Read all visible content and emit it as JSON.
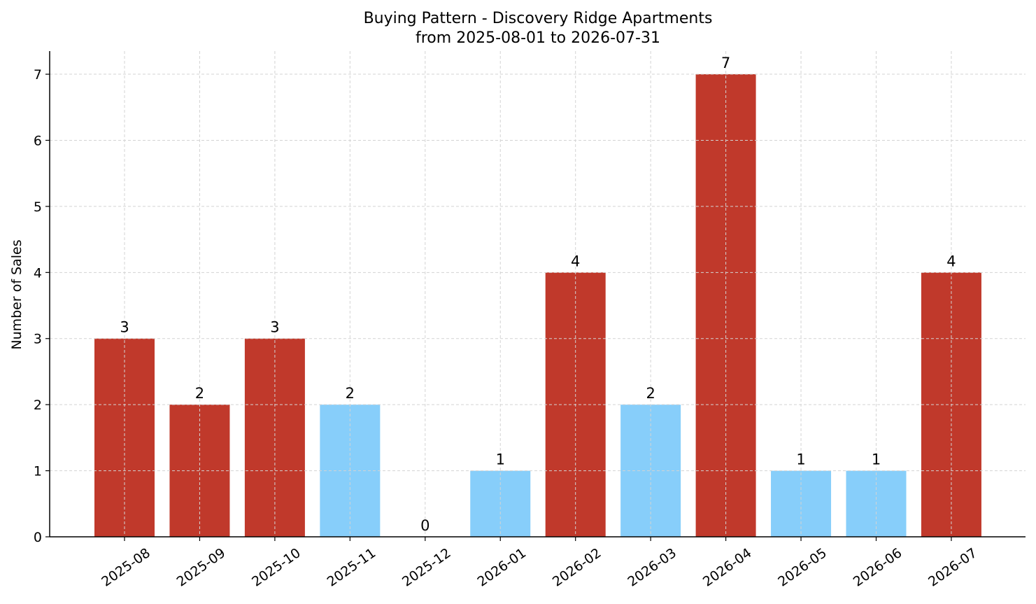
{
  "chart_data": {
    "type": "bar",
    "title_line1": "Buying Pattern - Discovery Ridge Apartments",
    "title_line2": "from 2025-08-01 to 2026-07-31",
    "xlabel": "",
    "ylabel": "Number of Sales",
    "categories": [
      "2025-08",
      "2025-09",
      "2025-10",
      "2025-11",
      "2025-12",
      "2026-01",
      "2026-02",
      "2026-03",
      "2026-04",
      "2026-05",
      "2026-06",
      "2026-07"
    ],
    "values": [
      3,
      2,
      3,
      2,
      0,
      1,
      4,
      2,
      7,
      1,
      1,
      4
    ],
    "bar_colors": [
      "#c0392b",
      "#c0392b",
      "#c0392b",
      "#87cefa",
      "#87cefa",
      "#87cefa",
      "#c0392b",
      "#87cefa",
      "#c0392b",
      "#87cefa",
      "#87cefa",
      "#c0392b"
    ],
    "data_labels": [
      "3",
      "2",
      "3",
      "2",
      "0",
      "1",
      "4",
      "2",
      "7",
      "1",
      "1",
      "4"
    ],
    "ylim": [
      0,
      7.35
    ],
    "yticks": [
      0,
      1,
      2,
      3,
      4,
      5,
      6,
      7
    ],
    "ytick_labels": [
      "0",
      "1",
      "2",
      "3",
      "4",
      "5",
      "6",
      "7"
    ],
    "grid": true,
    "grid_color": "#d3d3d3"
  }
}
